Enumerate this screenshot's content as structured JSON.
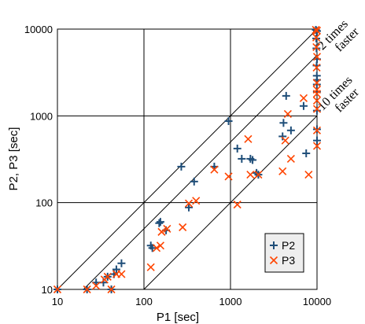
{
  "chart_data": {
    "type": "scatter",
    "x_scale": "log",
    "y_scale": "log",
    "xlim": [
      10,
      10000
    ],
    "ylim": [
      10,
      10000
    ],
    "grid": true,
    "xlabel": "P1 [sec]",
    "ylabel": "P2, P3 [sec]",
    "x_ticks": [
      "10",
      "100",
      "1000",
      "10000"
    ],
    "y_ticks": [
      "10",
      "100",
      "1000",
      "10000"
    ],
    "legend_position": "bottom-right",
    "reference_lines": [
      {
        "ratio": 1,
        "label_line1": "",
        "label_line2": ""
      },
      {
        "ratio": 2,
        "label_line1": "2 times",
        "label_line2": "faster"
      },
      {
        "ratio": 10,
        "label_line1": "10 times",
        "label_line2": "faster"
      }
    ],
    "series": [
      {
        "name": "P2",
        "marker": "plus",
        "color": "#1f4e79",
        "points": [
          [
            10,
            10
          ],
          [
            22,
            10
          ],
          [
            28,
            12
          ],
          [
            34,
            12
          ],
          [
            38,
            14
          ],
          [
            42,
            10
          ],
          [
            45,
            15
          ],
          [
            48,
            17
          ],
          [
            55,
            20
          ],
          [
            120,
            32
          ],
          [
            125,
            30
          ],
          [
            150,
            58
          ],
          [
            155,
            60
          ],
          [
            180,
            48
          ],
          [
            270,
            260
          ],
          [
            330,
            88
          ],
          [
            380,
            175
          ],
          [
            650,
            260
          ],
          [
            950,
            870
          ],
          [
            1200,
            420
          ],
          [
            1350,
            320
          ],
          [
            1700,
            320
          ],
          [
            1800,
            310
          ],
          [
            2000,
            220
          ],
          [
            2100,
            210
          ],
          [
            4000,
            580
          ],
          [
            4100,
            830
          ],
          [
            4400,
            1700
          ],
          [
            5000,
            680
          ],
          [
            7000,
            1300
          ],
          [
            7500,
            370
          ],
          [
            9700,
            9800
          ],
          [
            9800,
            7800
          ],
          [
            9850,
            6000
          ],
          [
            9900,
            3800
          ],
          [
            9950,
            2900
          ],
          [
            9960,
            2300
          ],
          [
            9970,
            1900
          ],
          [
            9980,
            1150
          ],
          [
            9990,
            700
          ],
          [
            10000,
            520
          ],
          [
            10000,
            9500
          ],
          [
            10000,
            4500
          ],
          [
            10000,
            2600
          ]
        ]
      },
      {
        "name": "P3",
        "marker": "cross",
        "color": "#ff4500",
        "points": [
          [
            10,
            10
          ],
          [
            22,
            10
          ],
          [
            28,
            11
          ],
          [
            35,
            13
          ],
          [
            38,
            14
          ],
          [
            42,
            10
          ],
          [
            48,
            15
          ],
          [
            55,
            15
          ],
          [
            120,
            18
          ],
          [
            140,
            30
          ],
          [
            155,
            32
          ],
          [
            160,
            46
          ],
          [
            185,
            50
          ],
          [
            280,
            52
          ],
          [
            330,
            98
          ],
          [
            400,
            105
          ],
          [
            650,
            240
          ],
          [
            950,
            200
          ],
          [
            1200,
            95
          ],
          [
            1600,
            540
          ],
          [
            1700,
            210
          ],
          [
            2100,
            210
          ],
          [
            4000,
            230
          ],
          [
            4300,
            520
          ],
          [
            4600,
            1050
          ],
          [
            5000,
            320
          ],
          [
            7000,
            1600
          ],
          [
            8000,
            210
          ],
          [
            9700,
            9800
          ],
          [
            9800,
            8000
          ],
          [
            9850,
            6200
          ],
          [
            9900,
            3600
          ],
          [
            9950,
            2400
          ],
          [
            9960,
            2000
          ],
          [
            9970,
            1800
          ],
          [
            9980,
            1500
          ],
          [
            9990,
            680
          ],
          [
            10000,
            450
          ],
          [
            10000,
            9600
          ],
          [
            10000,
            4800
          ],
          [
            10000,
            1200
          ]
        ]
      }
    ]
  }
}
